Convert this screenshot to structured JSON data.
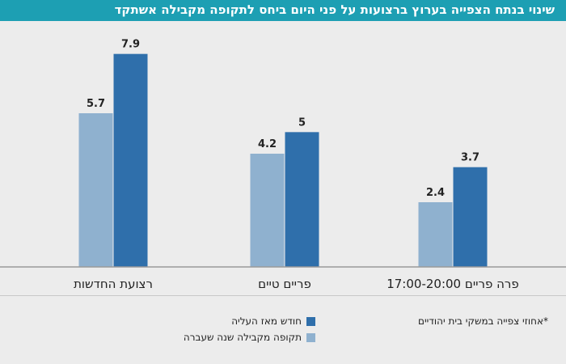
{
  "title": "שינוי בנתח הצפייה בערוץ ברצועות על פני היום ביחס לתקופה מקבילה אשתקד",
  "colors": {
    "current": "#2f6fab",
    "previous": "#8fb1cf",
    "title_bg": "#1d9fb3"
  },
  "chart_data": {
    "type": "bar",
    "categories": [
      "רצועת החדשות",
      "פריים טיים",
      "פרה פריים 17:00-20:00"
    ],
    "series": [
      {
        "name": "תקופה מקבילה שנה שעברה",
        "values": [
          5.7,
          4.2,
          2.4
        ]
      },
      {
        "name": "חודש מאז העליה",
        "values": [
          7.9,
          5,
          3.7
        ]
      }
    ],
    "ylim": [
      0,
      9
    ],
    "grid": false,
    "legend_position": "bottom"
  },
  "footnote": "*אחוזי צפייה במשקי בית יהודיים"
}
